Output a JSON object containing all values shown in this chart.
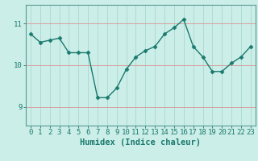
{
  "x": [
    0,
    1,
    2,
    3,
    4,
    5,
    6,
    7,
    8,
    9,
    10,
    11,
    12,
    13,
    14,
    15,
    16,
    17,
    18,
    19,
    20,
    21,
    22,
    23
  ],
  "y": [
    10.75,
    10.55,
    10.6,
    10.65,
    10.3,
    10.3,
    10.3,
    9.22,
    9.22,
    9.45,
    9.9,
    10.2,
    10.35,
    10.45,
    10.75,
    10.9,
    11.1,
    10.45,
    10.2,
    9.85,
    9.85,
    10.05,
    10.2,
    10.45
  ],
  "line_color": "#1a7a6e",
  "marker": "D",
  "marker_size": 2.5,
  "bg_color": "#cceee8",
  "grid_color_x": "#a8d8d0",
  "grid_color_y": "#d8a0a0",
  "axis_color": "#5a9a94",
  "xlabel": "Humidex (Indice chaleur)",
  "yticks": [
    9,
    10,
    11
  ],
  "ylim": [
    8.55,
    11.45
  ],
  "xlim": [
    -0.5,
    23.5
  ],
  "xlabel_fontsize": 7.5,
  "tick_fontsize": 6.5,
  "linewidth": 1.0
}
